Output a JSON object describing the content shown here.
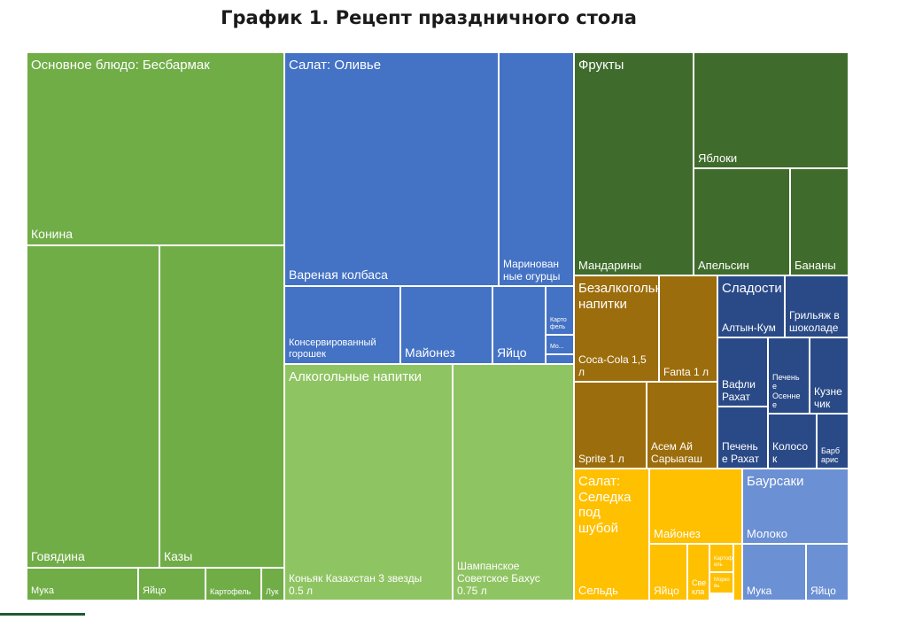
{
  "title": "График 1. Рецепт праздничного стола",
  "chart_data": {
    "type": "treemap",
    "title": "График 1. Рецепт праздничного стола",
    "groups": [
      {
        "name": "Основное блюдо: Бесбармак",
        "color": "#70ad47",
        "items": [
          "Конина",
          "Говядина",
          "Казы",
          "Мука",
          "Яйцо",
          "Картофель",
          "Лук"
        ]
      },
      {
        "name": "Салат: Оливье",
        "color": "#4472c4",
        "items": [
          "Вареная колбаса",
          "Маринованные огурцы",
          "Консервированный горошек",
          "Майонез",
          "Яйцо",
          "Картофель",
          "Морковь",
          ""
        ]
      },
      {
        "name": "Алкогольные напитки",
        "color": "#8fc462",
        "items": [
          "Коньяк Казахстан 3 звезды 0.5 л",
          "Шампанское Советское Бахус 0.75 л"
        ]
      },
      {
        "name": "Фрукты",
        "color": "#3f6c2c",
        "items": [
          "Мандарины",
          "Яблоки",
          "Апельсин",
          "Бананы"
        ]
      },
      {
        "name": "Безалкогольные напитки",
        "color": "#9c6d0c",
        "items": [
          "Coca-Cola 1,5 л",
          "Fanta 1 л",
          "Sprite 1 л",
          "Асем Ай Сарыагаш"
        ]
      },
      {
        "name": "Сладости",
        "color": "#2a4a87",
        "items": [
          "Алтын-Кум",
          "Грильяж в шоколаде",
          "Вафли Рахат",
          "Печенье Осеннее",
          "Кузнечик",
          "Печенье Рахат",
          "Колосок",
          "Барбарис"
        ]
      },
      {
        "name": "Салат: Селедка под шубой",
        "color": "#ffc000",
        "items": [
          "Сельдь",
          "Майонез",
          "Яйцо",
          "Свекла",
          "Картофель",
          "Морковь",
          ""
        ]
      },
      {
        "name": "Баурсаки",
        "color": "#6b90d4",
        "items": [
          "Молоко",
          "Мука",
          "Яйцо"
        ]
      }
    ]
  },
  "cells": [
    {
      "name": "cell-konina",
      "group": "Основное блюдо: Бесбармак",
      "header": "Основное блюдо: Бесбармак",
      "label": "Конина",
      "color": "#70ad47",
      "fs": 14
    },
    {
      "name": "cell-govyadina",
      "label": "Говядина",
      "color": "#70ad47",
      "fs": 14
    },
    {
      "name": "cell-kazy",
      "label": "Казы",
      "color": "#70ad47",
      "fs": 14
    },
    {
      "name": "cell-muka-1",
      "label": "Мука",
      "color": "#70ad47",
      "fs": 11
    },
    {
      "name": "cell-yaytso-1",
      "label": "Яйцо",
      "color": "#70ad47",
      "fs": 11
    },
    {
      "name": "cell-kartofel-1",
      "label": "Картофель",
      "color": "#70ad47",
      "fs": 9
    },
    {
      "name": "cell-luk",
      "label": "Лук",
      "color": "#70ad47",
      "fs": 9
    },
    {
      "name": "cell-kolbasa",
      "header": "Салат: Оливье",
      "label": "Вареная колбаса",
      "color": "#4472c4",
      "fs": 14
    },
    {
      "name": "cell-ogurtsy",
      "label": "Маринован\nные огурцы",
      "color": "#4472c4",
      "fs": 12
    },
    {
      "name": "cell-goroshek",
      "label": "Консервированный\nгорошек",
      "color": "#4472c4",
      "fs": 11
    },
    {
      "name": "cell-mayonez-1",
      "label": "Майонез",
      "color": "#4472c4",
      "fs": 14
    },
    {
      "name": "cell-yaytso-2",
      "label": "Яйцо",
      "color": "#4472c4",
      "fs": 14
    },
    {
      "name": "cell-kartofel-2",
      "label": "Карто\nфель",
      "color": "#4472c4",
      "fs": 7
    },
    {
      "name": "cell-morkov-1",
      "label": "Мо...",
      "color": "#4472c4",
      "fs": 7
    },
    {
      "name": "cell-olivie-small",
      "label": "",
      "color": "#4472c4",
      "fs": 7
    },
    {
      "name": "cell-konyak",
      "header": "Алкогольные напитки",
      "label": "Коньяк Казахстан 3 звезды\n0.5 л",
      "color": "#8fc462",
      "fs": 12
    },
    {
      "name": "cell-shampanskoe",
      "label": "Шампанское\nСоветское Бахус\n0.75 л",
      "color": "#8fc462",
      "fs": 12
    },
    {
      "name": "cell-mandariny",
      "header": "Фрукты",
      "label": "Мандарины",
      "color": "#3f6c2c",
      "fs": 13
    },
    {
      "name": "cell-yabloki",
      "label": "Яблоки",
      "color": "#3f6c2c",
      "fs": 13
    },
    {
      "name": "cell-apelsin",
      "label": "Апельсин",
      "color": "#3f6c2c",
      "fs": 13
    },
    {
      "name": "cell-banany",
      "label": "Бананы",
      "color": "#3f6c2c",
      "fs": 13
    },
    {
      "name": "cell-coca-cola",
      "header": "Безалкогольные\nнапитки",
      "label": "Coca-Cola 1,5\nл",
      "color": "#9c6d0c",
      "fs": 12
    },
    {
      "name": "cell-fanta",
      "label": "Fanta 1 л",
      "color": "#9c6d0c",
      "fs": 12
    },
    {
      "name": "cell-sprite",
      "label": "Sprite 1 л",
      "color": "#9c6d0c",
      "fs": 12
    },
    {
      "name": "cell-asem-ay",
      "label": "Асем Ай\nСарыагаш",
      "color": "#9c6d0c",
      "fs": 12
    },
    {
      "name": "cell-altyn-kum",
      "header": "Сладости",
      "label": "Алтын-Кум",
      "color": "#2a4a87",
      "fs": 12
    },
    {
      "name": "cell-grilyazh",
      "label": "Грильяж в\nшоколаде",
      "color": "#2a4a87",
      "fs": 12
    },
    {
      "name": "cell-vafli",
      "label": "Вафли\nРахат",
      "color": "#2a4a87",
      "fs": 12
    },
    {
      "name": "cell-pechene-osennee",
      "label": "Печень\nе\nОсенне\nе",
      "color": "#2a4a87",
      "fs": 9
    },
    {
      "name": "cell-kuznechik",
      "label": "Кузне\nчик",
      "color": "#2a4a87",
      "fs": 12
    },
    {
      "name": "cell-pechene-rahat",
      "label": "Печень\nе Рахат",
      "color": "#2a4a87",
      "fs": 12
    },
    {
      "name": "cell-kolosok",
      "label": "Колосо\nк",
      "color": "#2a4a87",
      "fs": 12
    },
    {
      "name": "cell-barbaris",
      "label": "Барб\nарис",
      "color": "#2a4a87",
      "fs": 9
    },
    {
      "name": "cell-seld",
      "header": "Салат: Селедка под\nшубой",
      "label": "Сельдь",
      "color": "#ffc000",
      "fs": 13
    },
    {
      "name": "cell-mayonez-2",
      "label": "Майонез",
      "color": "#ffc000",
      "fs": 13
    },
    {
      "name": "cell-yaytso-3",
      "label": "Яйцо",
      "color": "#ffc000",
      "fs": 12
    },
    {
      "name": "cell-svekla",
      "label": "Све\nкла",
      "color": "#ffc000",
      "fs": 9
    },
    {
      "name": "cell-kartofel-3",
      "label": "Картоф\nель",
      "color": "#ffc000",
      "fs": 6
    },
    {
      "name": "cell-morkov-2",
      "label": "Морко\nвь",
      "color": "#ffc000",
      "fs": 6
    },
    {
      "name": "cell-shuba-small",
      "label": "",
      "color": "#ffc000",
      "fs": 6
    },
    {
      "name": "cell-moloko",
      "header": "Баурсаки",
      "label": "Молоко",
      "color": "#6b90d4",
      "fs": 13
    },
    {
      "name": "cell-muka-2",
      "label": "Мука",
      "color": "#6b90d4",
      "fs": 12
    },
    {
      "name": "cell-yaytso-4",
      "label": "Яйцо",
      "color": "#6b90d4",
      "fs": 12
    }
  ]
}
